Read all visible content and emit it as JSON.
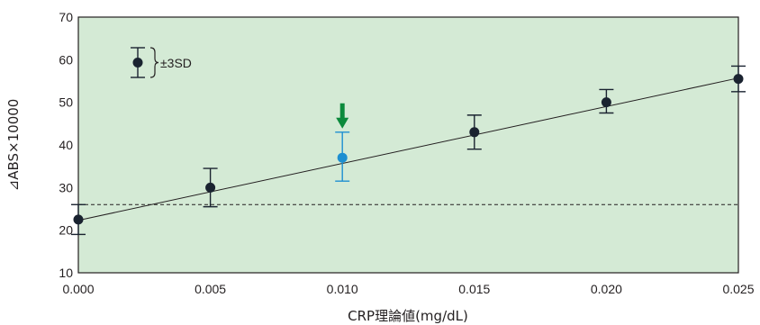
{
  "chart_data": {
    "type": "scatter",
    "xlabel": "CRP理論値(mg/dL)",
    "ylabel": "⊿ABS×10000",
    "xlim": [
      0,
      0.025
    ],
    "ylim": [
      10,
      70
    ],
    "xticks": [
      "0.000",
      "0.005",
      "0.010",
      "0.015",
      "0.020",
      "0.025"
    ],
    "yticks": [
      "10",
      "20",
      "30",
      "40",
      "50",
      "60",
      "70"
    ],
    "grid": false,
    "legend": {
      "label": "±3SD",
      "placement": "top-left"
    },
    "points": [
      {
        "x": 0.0,
        "y": 22.5,
        "low": 19.0,
        "high": 26.0,
        "highlight": false
      },
      {
        "x": 0.005,
        "y": 30.0,
        "low": 25.5,
        "high": 34.5,
        "highlight": false
      },
      {
        "x": 0.01,
        "y": 37.0,
        "low": 31.5,
        "high": 43.0,
        "highlight": true
      },
      {
        "x": 0.015,
        "y": 43.0,
        "low": 39.0,
        "high": 47.0,
        "highlight": false
      },
      {
        "x": 0.02,
        "y": 50.0,
        "low": 47.5,
        "high": 53.0,
        "highlight": false
      },
      {
        "x": 0.025,
        "y": 55.5,
        "low": 52.5,
        "high": 58.5,
        "highlight": false
      }
    ],
    "fit_line": {
      "x": [
        0.0,
        0.025
      ],
      "y": [
        22.3,
        55.7
      ]
    },
    "threshold_line": {
      "y": 26.0,
      "style": "dashed"
    },
    "highlight_tick": "0.010"
  },
  "colors": {
    "plot_bg": "#d4ead5",
    "ink": "#1a2330",
    "highlight": "#1d8fd1",
    "arrow": "#0c8a3c"
  }
}
